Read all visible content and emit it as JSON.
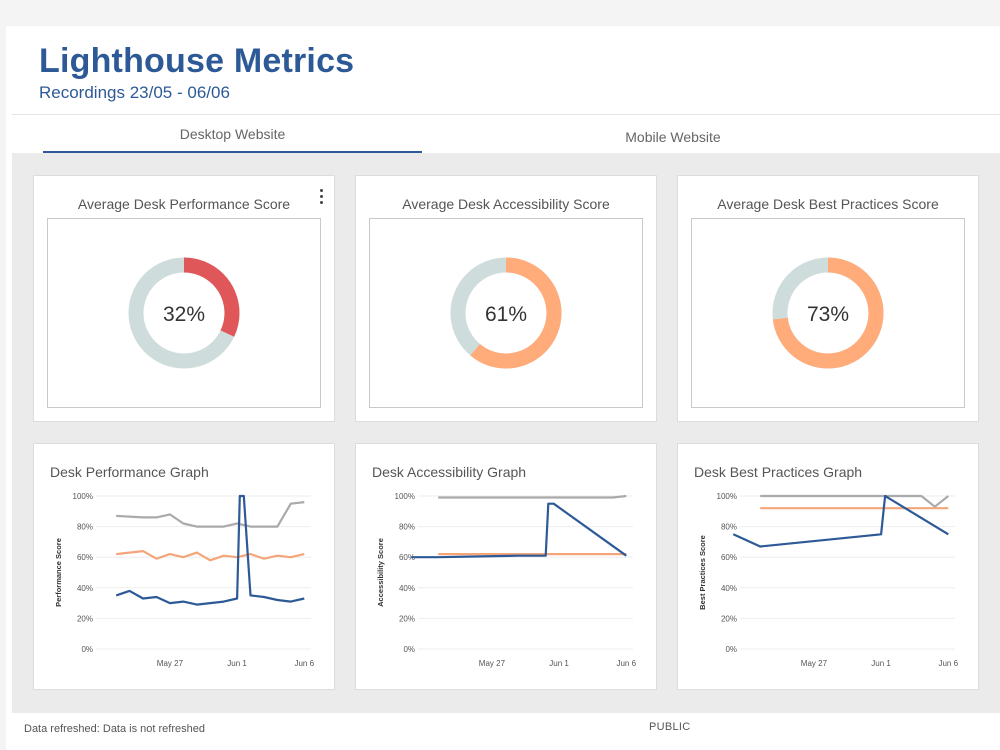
{
  "header": {
    "title": "Lighthouse Metrics",
    "subtitle": "Recordings 23/05 - 06/06"
  },
  "tabs": [
    {
      "label": "Desktop Website",
      "active": true
    },
    {
      "label": "Mobile Website",
      "active": false
    }
  ],
  "colors": {
    "brand": "#2d5a96",
    "donut_track": "#cfdcdc",
    "score_low": "#e05759",
    "score_mid": "#ffab7a",
    "series_gray": "#aaaaaa",
    "series_orange": "#f4a67a",
    "series_blue": "#2d5a96"
  },
  "kpis": [
    {
      "title": "Average Desk Performance Score",
      "value": 32,
      "label": "32%",
      "color": "#e05759",
      "has_menu": true
    },
    {
      "title": "Average Desk Accessibility Score",
      "value": 61,
      "label": "61%",
      "color": "#ffab7a"
    },
    {
      "title": "Average Desk Best Practices Score",
      "value": 73,
      "label": "73%",
      "color": "#ffab7a"
    }
  ],
  "menu": {
    "icon": "more-vertical-icon"
  },
  "chart_data": [
    {
      "type": "line",
      "title": "Desk Performance Graph",
      "ylabel": "Performance Score",
      "ylim": [
        0,
        100
      ],
      "yticks": [
        "0%",
        "20%",
        "40%",
        "60%",
        "80%",
        "100%"
      ],
      "xticks": [
        "May 27",
        "Jun 1",
        "Jun 6"
      ],
      "series": [
        {
          "color": "#aaaaaa",
          "x": [
            "May 23",
            "May 25",
            "May 26",
            "May 27",
            "May 28",
            "May 29",
            "May 30",
            "May 31",
            "Jun 1",
            "Jun 2",
            "Jun 3",
            "Jun 4",
            "Jun 5",
            "Jun 6"
          ],
          "values": [
            87,
            86,
            86,
            88,
            82,
            80,
            80,
            80,
            82,
            80,
            80,
            80,
            95,
            96
          ]
        },
        {
          "color": "#f4a67a",
          "x": [
            "May 23",
            "May 25",
            "May 26",
            "May 27",
            "May 28",
            "May 29",
            "May 30",
            "May 31",
            "Jun 1",
            "Jun 2",
            "Jun 3",
            "Jun 4",
            "Jun 5",
            "Jun 6"
          ],
          "values": [
            62,
            64,
            59,
            62,
            60,
            63,
            58,
            61,
            60,
            62,
            59,
            61,
            60,
            62
          ]
        },
        {
          "color": "#2d5a96",
          "x": [
            "May 23",
            "May 24",
            "May 25",
            "May 26",
            "May 27",
            "May 28",
            "May 29",
            "May 30",
            "May 31",
            "Jun 1",
            "Jun 1.2",
            "Jun 1.5",
            "Jun 2",
            "Jun 3",
            "Jun 4",
            "Jun 5",
            "Jun 6"
          ],
          "values": [
            35,
            38,
            33,
            34,
            30,
            31,
            29,
            30,
            31,
            33,
            100,
            100,
            35,
            34,
            32,
            31,
            33
          ]
        }
      ]
    },
    {
      "type": "line",
      "title": "Desk Accessibility Graph",
      "ylabel": "Accessibility Score",
      "ylim": [
        0,
        100
      ],
      "yticks": [
        "0%",
        "20%",
        "40%",
        "60%",
        "80%",
        "100%"
      ],
      "xticks": [
        "May 27",
        "Jun 1",
        "Jun 6"
      ],
      "series": [
        {
          "color": "#aaaaaa",
          "x": [
            "May 23",
            "Jun 5",
            "Jun 6"
          ],
          "values": [
            99,
            99,
            100
          ]
        },
        {
          "color": "#f4a67a",
          "x": [
            "May 23",
            "Jun 6"
          ],
          "values": [
            62,
            62
          ]
        },
        {
          "color": "#2d5a96",
          "x": [
            "May 21",
            "May 23",
            "May 29",
            "May 31",
            "May 31.2",
            "May 31.6",
            "Jun 6"
          ],
          "values": [
            60,
            60,
            61,
            61,
            95,
            95,
            61
          ]
        }
      ]
    },
    {
      "type": "line",
      "title": "Desk Best Practices Graph",
      "ylabel": "Best Practices Score",
      "ylim": [
        0,
        100
      ],
      "yticks": [
        "0%",
        "20%",
        "40%",
        "60%",
        "80%",
        "100%"
      ],
      "xticks": [
        "May 27",
        "Jun 1",
        "Jun 6"
      ],
      "series": [
        {
          "color": "#aaaaaa",
          "x": [
            "May 23",
            "Jun 4",
            "Jun 5",
            "Jun 6"
          ],
          "values": [
            100,
            100,
            93,
            100
          ]
        },
        {
          "color": "#f4a67a",
          "x": [
            "May 23",
            "Jun 6"
          ],
          "values": [
            92,
            92
          ]
        },
        {
          "color": "#2d5a96",
          "x": [
            "May 21",
            "May 23",
            "Jun 1",
            "Jun 1.3",
            "Jun 6"
          ],
          "values": [
            75,
            67,
            75,
            100,
            75
          ]
        }
      ]
    }
  ],
  "footer": {
    "left": "Data refreshed: Data is not refreshed",
    "center": "PUBLIC"
  }
}
